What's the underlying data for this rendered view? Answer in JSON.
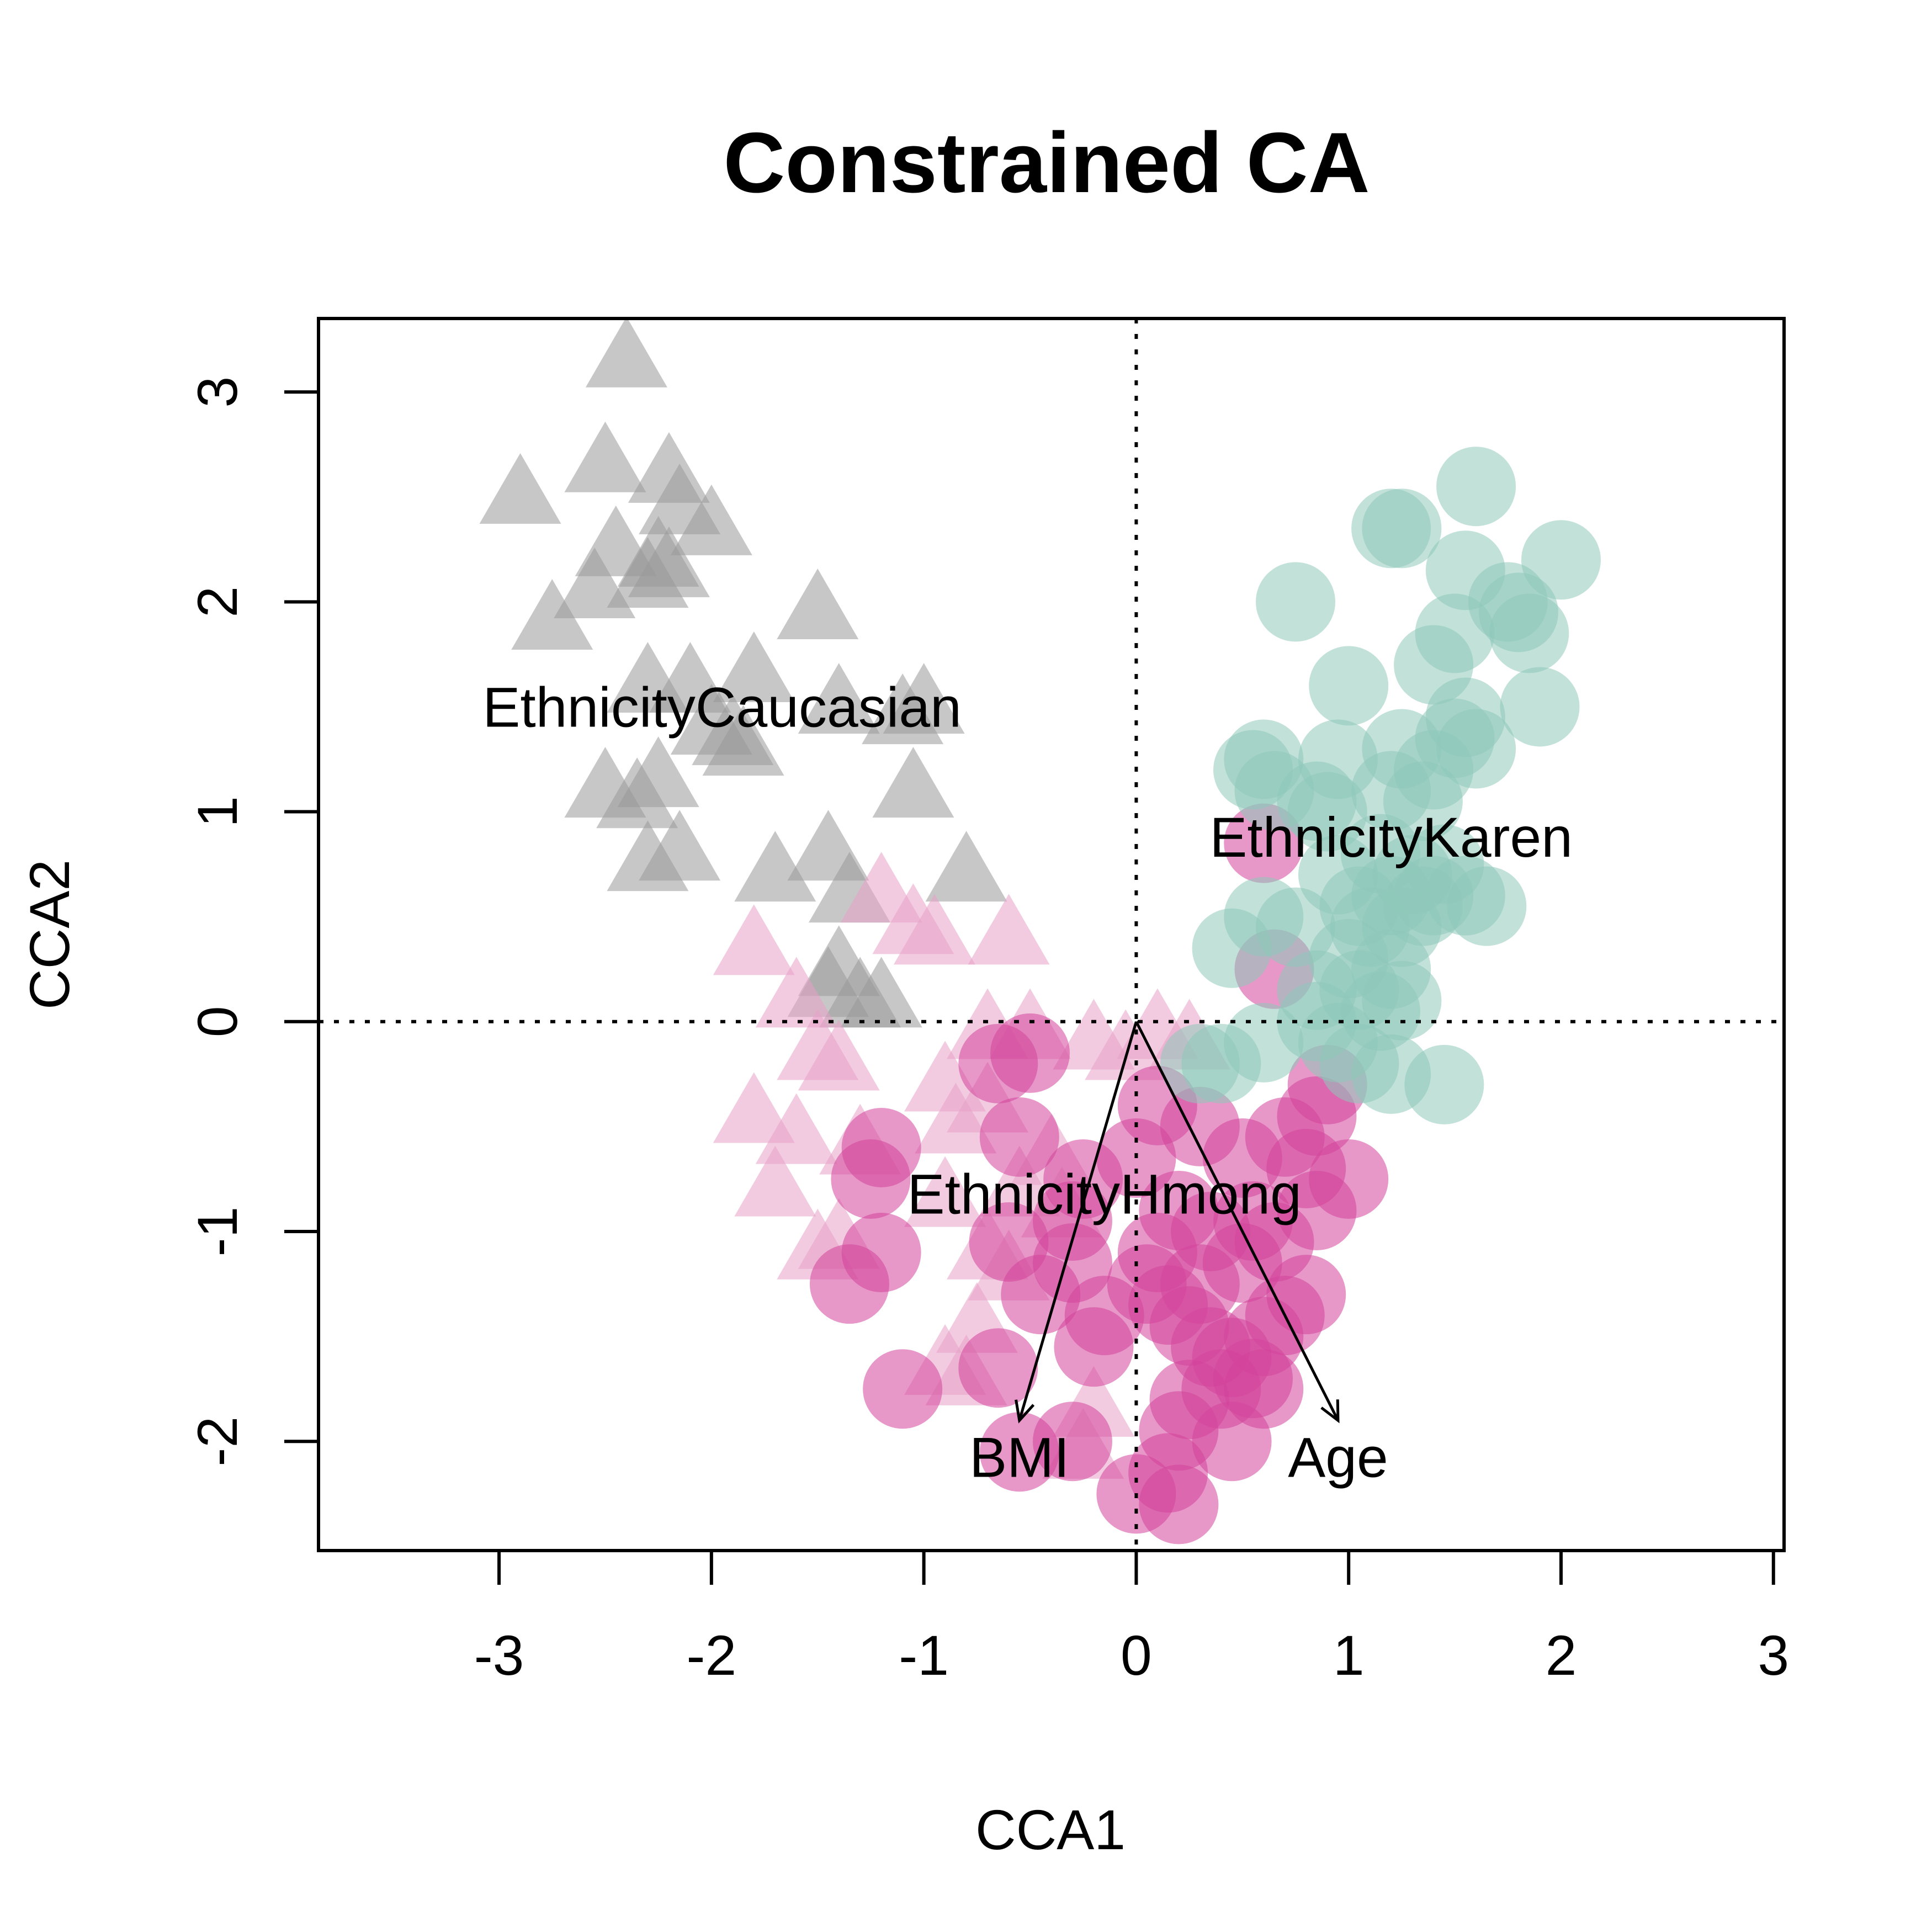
{
  "chart_data": {
    "type": "scatter",
    "title": "Constrained CA",
    "xlabel": "CCA1",
    "ylabel": "CCA2",
    "xlim": [
      -3.85,
      3.05
    ],
    "ylim": [
      -2.52,
      3.35
    ],
    "xticks": [
      "-3",
      "-2",
      "-1",
      "0",
      "1",
      "2",
      "3"
    ],
    "yticks": [
      "-2",
      "-1",
      "0",
      "1",
      "2",
      "3"
    ],
    "grid": false,
    "reference_lines": {
      "x": 0,
      "y": 0,
      "style": "dotted"
    },
    "groups": [
      {
        "color": "#999999",
        "marker": "triangle",
        "points": [
          [
            -2.4,
            3.15
          ],
          [
            -2.5,
            2.65
          ],
          [
            -2.2,
            2.6
          ],
          [
            -2.9,
            2.5
          ],
          [
            -2.15,
            2.45
          ],
          [
            -2.0,
            2.35
          ],
          [
            -2.45,
            2.25
          ],
          [
            -2.25,
            2.2
          ],
          [
            -2.3,
            2.1
          ],
          [
            -2.2,
            2.15
          ],
          [
            -2.55,
            2.05
          ],
          [
            -2.75,
            1.9
          ],
          [
            -1.5,
            1.95
          ],
          [
            -2.3,
            1.6
          ],
          [
            -2.1,
            1.6
          ],
          [
            -1.8,
            1.65
          ],
          [
            -1.4,
            1.5
          ],
          [
            -1.1,
            1.45
          ],
          [
            -1.0,
            1.5
          ],
          [
            -2.0,
            1.4
          ],
          [
            -1.85,
            1.3
          ],
          [
            -1.9,
            1.35
          ],
          [
            -2.5,
            1.1
          ],
          [
            -2.25,
            1.15
          ],
          [
            -2.35,
            1.05
          ],
          [
            -1.05,
            1.1
          ],
          [
            -2.15,
            0.8
          ],
          [
            -2.3,
            0.75
          ],
          [
            -1.7,
            0.7
          ],
          [
            -1.45,
            0.8
          ],
          [
            -0.8,
            0.7
          ],
          [
            -1.35,
            0.6
          ],
          [
            -1.4,
            0.25
          ],
          [
            -1.3,
            0.1
          ],
          [
            -1.2,
            0.1
          ],
          [
            -1.45,
            0.15
          ]
        ]
      },
      {
        "color": "#e7a1c9",
        "marker": "triangle",
        "points": [
          [
            -1.2,
            0.6
          ],
          [
            -1.05,
            0.45
          ],
          [
            -0.95,
            0.4
          ],
          [
            -1.8,
            0.35
          ],
          [
            -0.6,
            0.4
          ],
          [
            -1.6,
            0.1
          ],
          [
            -1.5,
            -0.15
          ],
          [
            -1.4,
            -0.2
          ],
          [
            -0.7,
            -0.05
          ],
          [
            -0.5,
            -0.05
          ],
          [
            -0.2,
            -0.1
          ],
          [
            -0.05,
            -0.15
          ],
          [
            0.1,
            -0.05
          ],
          [
            0.25,
            -0.1
          ],
          [
            -1.8,
            -0.45
          ],
          [
            -1.6,
            -0.55
          ],
          [
            -0.9,
            -0.3
          ],
          [
            -0.85,
            -0.5
          ],
          [
            -0.7,
            -0.4
          ],
          [
            -1.3,
            -0.6
          ],
          [
            -1.7,
            -0.8
          ],
          [
            -0.4,
            -0.65
          ],
          [
            -0.55,
            -0.8
          ],
          [
            -0.9,
            -0.85
          ],
          [
            -1.4,
            -1.05
          ],
          [
            -1.5,
            -1.1
          ],
          [
            -0.7,
            -1.1
          ],
          [
            -0.6,
            -1.2
          ],
          [
            -0.75,
            -1.45
          ],
          [
            -0.8,
            -1.7
          ],
          [
            -0.9,
            -1.65
          ],
          [
            -0.2,
            -1.85
          ],
          [
            -0.25,
            -2.05
          ],
          [
            -0.35,
            -0.9
          ]
        ]
      },
      {
        "color": "#d4449b",
        "marker": "circle",
        "points": [
          [
            0.6,
            0.85
          ],
          [
            0.65,
            0.25
          ],
          [
            -0.65,
            -0.2
          ],
          [
            -0.5,
            -0.15
          ],
          [
            -0.55,
            -0.55
          ],
          [
            -1.2,
            -0.6
          ],
          [
            -1.25,
            -0.75
          ],
          [
            0.1,
            -0.4
          ],
          [
            0.3,
            -0.5
          ],
          [
            0.5,
            -0.65
          ],
          [
            0.7,
            -0.55
          ],
          [
            0.8,
            -0.7
          ],
          [
            0.9,
            -0.3
          ],
          [
            0.85,
            -0.45
          ],
          [
            1.0,
            -0.75
          ],
          [
            -0.25,
            -0.75
          ],
          [
            0.0,
            -0.65
          ],
          [
            -0.3,
            -0.95
          ],
          [
            0.2,
            -0.9
          ],
          [
            0.35,
            -1.0
          ],
          [
            0.55,
            -0.95
          ],
          [
            0.65,
            -1.05
          ],
          [
            0.85,
            -0.9
          ],
          [
            0.5,
            -1.15
          ],
          [
            -1.2,
            -1.1
          ],
          [
            -1.35,
            -1.25
          ],
          [
            -0.6,
            -1.05
          ],
          [
            -0.45,
            -1.3
          ],
          [
            -0.3,
            -1.15
          ],
          [
            -0.15,
            -1.4
          ],
          [
            0.05,
            -1.25
          ],
          [
            0.15,
            -1.35
          ],
          [
            0.25,
            -1.45
          ],
          [
            0.35,
            -1.55
          ],
          [
            0.45,
            -1.6
          ],
          [
            0.6,
            -1.5
          ],
          [
            0.7,
            -1.4
          ],
          [
            0.8,
            -1.3
          ],
          [
            0.55,
            -1.7
          ],
          [
            0.4,
            -1.75
          ],
          [
            0.25,
            -1.8
          ],
          [
            0.6,
            -1.75
          ],
          [
            -0.2,
            -1.55
          ],
          [
            0.2,
            -1.95
          ],
          [
            -1.1,
            -1.75
          ],
          [
            -0.65,
            -1.65
          ],
          [
            0.15,
            -2.15
          ],
          [
            0.45,
            -2.0
          ],
          [
            -0.55,
            -2.05
          ],
          [
            -0.3,
            -2.0
          ],
          [
            0.0,
            -2.25
          ],
          [
            0.2,
            -2.3
          ],
          [
            0.3,
            -1.25
          ],
          [
            0.1,
            -1.1
          ]
        ]
      },
      {
        "color": "#8ec9ba",
        "marker": "circle",
        "points": [
          [
            1.6,
            2.55
          ],
          [
            1.2,
            2.35
          ],
          [
            1.25,
            2.35
          ],
          [
            1.55,
            2.15
          ],
          [
            2.0,
            2.2
          ],
          [
            1.75,
            2.0
          ],
          [
            1.85,
            1.85
          ],
          [
            1.8,
            1.95
          ],
          [
            0.75,
            2.0
          ],
          [
            1.5,
            1.85
          ],
          [
            1.4,
            1.7
          ],
          [
            1.0,
            1.6
          ],
          [
            1.9,
            1.5
          ],
          [
            1.55,
            1.45
          ],
          [
            1.5,
            1.35
          ],
          [
            1.6,
            1.3
          ],
          [
            1.25,
            1.3
          ],
          [
            1.4,
            1.2
          ],
          [
            0.6,
            1.25
          ],
          [
            0.55,
            1.2
          ],
          [
            0.95,
            1.25
          ],
          [
            1.2,
            1.1
          ],
          [
            0.9,
            1.0
          ],
          [
            0.85,
            1.05
          ],
          [
            1.35,
            1.05
          ],
          [
            0.65,
            1.1
          ],
          [
            1.15,
            0.8
          ],
          [
            1.3,
            0.7
          ],
          [
            1.45,
            0.75
          ],
          [
            1.55,
            0.6
          ],
          [
            1.65,
            0.55
          ],
          [
            1.4,
            0.6
          ],
          [
            1.2,
            0.6
          ],
          [
            1.05,
            0.55
          ],
          [
            0.95,
            0.7
          ],
          [
            1.1,
            0.45
          ],
          [
            1.25,
            0.45
          ],
          [
            0.75,
            0.45
          ],
          [
            0.6,
            0.5
          ],
          [
            0.45,
            0.35
          ],
          [
            1.0,
            0.3
          ],
          [
            1.2,
            0.25
          ],
          [
            0.85,
            0.15
          ],
          [
            1.05,
            0.15
          ],
          [
            1.15,
            0.05
          ],
          [
            0.85,
            0.0
          ],
          [
            0.6,
            -0.1
          ],
          [
            0.4,
            -0.2
          ],
          [
            0.3,
            -0.2
          ],
          [
            1.05,
            -0.2
          ],
          [
            1.2,
            -0.25
          ],
          [
            1.45,
            -0.3
          ],
          [
            0.95,
            -0.1
          ],
          [
            1.25,
            0.1
          ],
          [
            1.35,
            0.55
          ]
        ]
      }
    ],
    "arrows": [
      {
        "label": "BMI",
        "x": -0.55,
        "y": -1.9
      },
      {
        "label": "Age",
        "x": 0.95,
        "y": -1.9
      }
    ],
    "centroid_labels": [
      {
        "label": "EthnicityCaucasian",
        "x": -1.95,
        "y": 1.5
      },
      {
        "label": "EthnicityKaren",
        "x": 1.2,
        "y": 0.88
      },
      {
        "label": "EthnicityHmong",
        "x": -0.15,
        "y": -0.82
      }
    ]
  }
}
